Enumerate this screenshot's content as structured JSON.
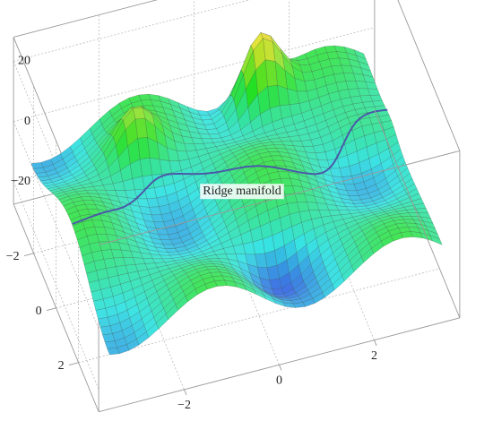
{
  "chart_data": {
    "type": "surface3d",
    "annotation": "Ridge manifold",
    "xlim": [
      -3.8,
      3.8
    ],
    "xticks": [
      {
        "value": -2,
        "label": "−2"
      },
      0,
      2
    ],
    "ylim": [
      -3.8,
      3.8
    ],
    "yticks": [
      {
        "value": -2,
        "label": "−2"
      },
      0,
      2
    ],
    "zlim": [
      -27.5,
      28
    ],
    "zticks": [
      {
        "value": -20,
        "label": "−20"
      },
      0,
      20
    ],
    "grid": true
  }
}
